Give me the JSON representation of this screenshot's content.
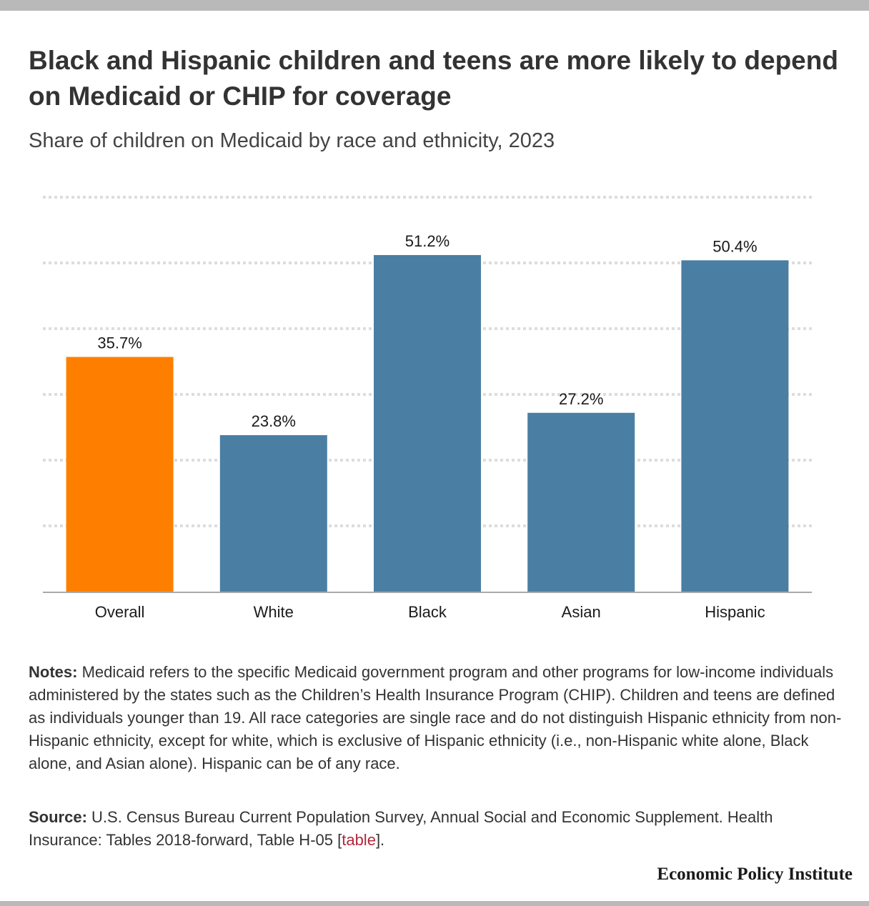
{
  "title": "Black and Hispanic children and teens are more likely to depend on Medicaid or CHIP for coverage",
  "subtitle": "Share of children on Medicaid by race and ethnicity, 2023",
  "chart_data": {
    "type": "bar",
    "categories": [
      "Overall",
      "White",
      "Black",
      "Asian",
      "Hispanic"
    ],
    "values": [
      35.7,
      23.8,
      51.2,
      27.2,
      50.4
    ],
    "value_labels": [
      "35.7%",
      "23.8%",
      "51.2%",
      "27.2%",
      "50.4%"
    ],
    "ylim": [
      0,
      60
    ],
    "gridlines": [
      10,
      20,
      30,
      40,
      50,
      60
    ],
    "grid": true,
    "y_axis_labels_shown": false,
    "bar_colors": [
      "#fe7f00",
      "#4a7fa3",
      "#4a7fa3",
      "#4a7fa3",
      "#4a7fa3"
    ]
  },
  "notes": {
    "label": "Notes:",
    "text": " Medicaid refers to the specific Medicaid government program and other programs for low-income individuals administered by the states such as the Children’s Health Insurance Program (CHIP). Children and teens are defined as individuals younger than 19. All race categories are single race and do not distinguish Hispanic ethnicity from non-Hispanic ethnicity, except for white, which is exclusive of Hispanic ethnicity (i.e., non-Hispanic white alone, Black alone, and Asian alone). Hispanic can be of any race."
  },
  "source": {
    "label": "Source:",
    "text": " U.S. Census Bureau Current Population Survey, Annual Social and Economic Supplement. Health Insurance: Tables 2018-forward, Table H-05 [",
    "link_text": "table",
    "suffix": "]."
  },
  "brand": "Economic Policy Institute",
  "colors": {
    "highlight": "#fe7f00",
    "bar": "#4a7fa3",
    "link": "#b0283a",
    "grid": "#dddddd",
    "axis": "#aaaaaa"
  }
}
